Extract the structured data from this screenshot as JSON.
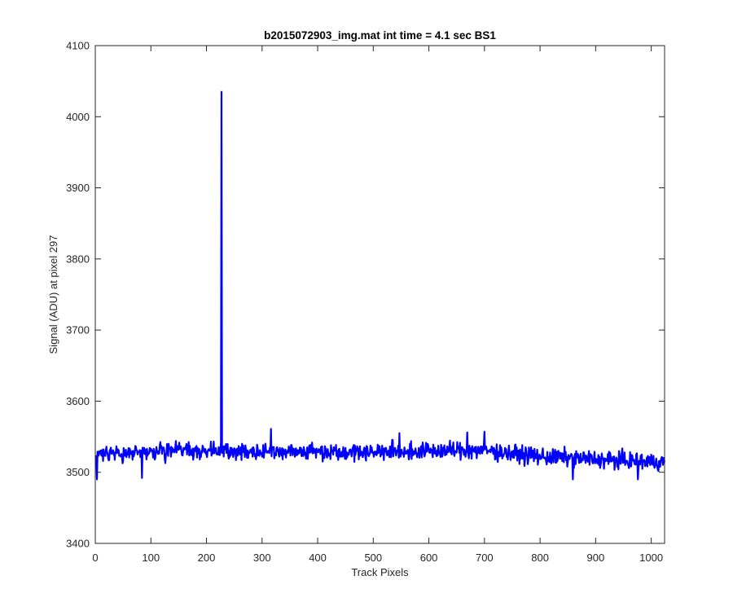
{
  "chart_data": {
    "type": "line",
    "title": "b2015072903_img.mat int time = 4.1 sec   BS1",
    "xlabel": "Track Pixels",
    "ylabel": "Signal (ADU) at pixel 297",
    "xlim": [
      0,
      1024
    ],
    "ylim": [
      3400,
      4100
    ],
    "x_ticks": [
      0,
      100,
      200,
      300,
      400,
      500,
      600,
      700,
      800,
      900,
      1000
    ],
    "y_ticks": [
      3400,
      3500,
      3600,
      3700,
      3800,
      3900,
      4000,
      4100
    ],
    "grid": false,
    "line_color": "#0000ff",
    "series": [
      {
        "x_start": 1,
        "x_step": 1,
        "baseline_profile": [
          [
            1,
            3524
          ],
          [
            150,
            3532
          ],
          [
            250,
            3530
          ],
          [
            500,
            3529
          ],
          [
            700,
            3531
          ],
          [
            800,
            3522
          ],
          [
            900,
            3518
          ],
          [
            1024,
            3514
          ]
        ],
        "noise_amplitude": 11,
        "spike": {
          "x": 227,
          "y": 4035
        },
        "minima": [
          [
            3,
            3490
          ],
          [
            84,
            3492
          ],
          [
            859,
            3490
          ],
          [
            976,
            3490
          ]
        ],
        "maxima": [
          [
            316,
            3561
          ],
          [
            547,
            3555
          ],
          [
            669,
            3556
          ],
          [
            700,
            3557
          ]
        ],
        "n_points": 1024
      }
    ]
  }
}
